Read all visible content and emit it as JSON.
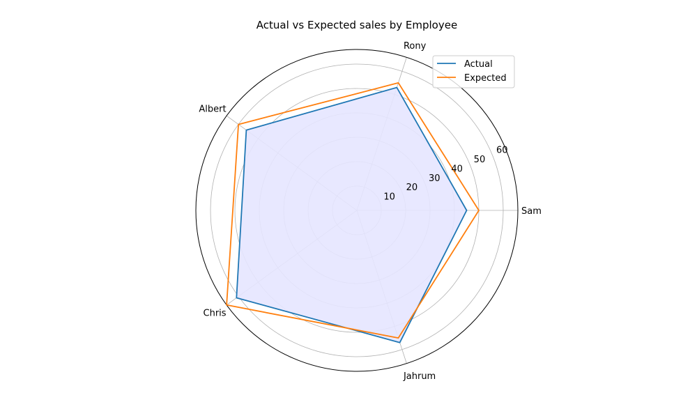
{
  "chart_data": {
    "type": "radar",
    "title": "Actual vs Expected sales by Employee",
    "categories": [
      "Sam",
      "Rony",
      "Albert",
      "Chris",
      "Jahrum"
    ],
    "r_ticks": [
      10,
      20,
      30,
      40,
      50,
      60
    ],
    "r_range": [
      0,
      66
    ],
    "grid": true,
    "legend_position": "top-right",
    "series": [
      {
        "name": "Actual",
        "values": [
          45,
          53,
          56,
          61,
          57
        ],
        "color": "#1f77b4",
        "fill": "#e6e6ff"
      },
      {
        "name": "Expected",
        "values": [
          50,
          55,
          60,
          66,
          55
        ],
        "color": "#ff7f0e"
      }
    ]
  }
}
